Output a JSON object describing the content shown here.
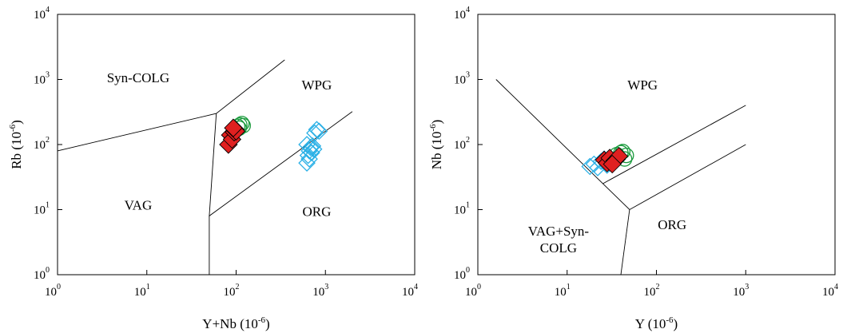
{
  "chart_data": [
    {
      "type": "scatter",
      "title": "",
      "xlabel": "Y+Nb (10-6)",
      "ylabel": "Rb (10-6)",
      "x_scale": "log",
      "y_scale": "log",
      "xlim": [
        1,
        10000
      ],
      "ylim": [
        1,
        10000
      ],
      "x_ticks": [
        {
          "base": "10",
          "exp": "0"
        },
        {
          "base": "10",
          "exp": "1"
        },
        {
          "base": "10",
          "exp": "2"
        },
        {
          "base": "10",
          "exp": "3"
        },
        {
          "base": "10",
          "exp": "4"
        }
      ],
      "y_ticks": [
        {
          "base": "10",
          "exp": "0"
        },
        {
          "base": "10",
          "exp": "1"
        },
        {
          "base": "10",
          "exp": "2"
        },
        {
          "base": "10",
          "exp": "3"
        },
        {
          "base": "10",
          "exp": "4"
        }
      ],
      "field_labels": [
        {
          "text": "Syn-COLG",
          "x": 8,
          "y": 900
        },
        {
          "text": "WPG",
          "x": 800,
          "y": 700
        },
        {
          "text": "VAG",
          "x": 8,
          "y": 10
        },
        {
          "text": "ORG",
          "x": 800,
          "y": 8
        }
      ],
      "boundaries": [
        [
          [
            1,
            80
          ],
          [
            60,
            300
          ],
          [
            350,
            2000
          ]
        ],
        [
          [
            60,
            300
          ],
          [
            50,
            8
          ],
          [
            2000,
            320
          ]
        ],
        [
          [
            50,
            8
          ],
          [
            50,
            1
          ]
        ]
      ],
      "series": [
        {
          "marker": "filled-diamond",
          "color": "#e02020",
          "points": [
            [
              82,
              100
            ],
            [
              86,
              140
            ],
            [
              90,
              120
            ],
            [
              95,
              155
            ],
            [
              98,
              170
            ],
            [
              100,
              160
            ],
            [
              93,
              180
            ]
          ]
        },
        {
          "marker": "open-circle",
          "color": "#1a9a3c",
          "points": [
            [
              96,
              165
            ],
            [
              104,
              190
            ],
            [
              110,
              200
            ],
            [
              116,
              210
            ],
            [
              120,
              195
            ],
            [
              108,
              178
            ]
          ]
        },
        {
          "marker": "open-square",
          "color": "#2ab0e6",
          "points": [
            [
              620,
              52
            ],
            [
              640,
              68
            ],
            [
              660,
              80
            ],
            [
              680,
              90
            ],
            [
              720,
              95
            ],
            [
              700,
              75
            ],
            [
              660,
              60
            ],
            [
              620,
              100
            ],
            [
              800,
              170
            ],
            [
              850,
              160
            ],
            [
              760,
              150
            ],
            [
              740,
              85
            ]
          ]
        }
      ]
    },
    {
      "type": "scatter",
      "title": "",
      "xlabel": "Y (10-6)",
      "ylabel": "Nb (10-6)",
      "x_scale": "log",
      "y_scale": "log",
      "xlim": [
        1,
        10000
      ],
      "ylim": [
        1,
        10000
      ],
      "x_ticks": [
        {
          "base": "10",
          "exp": "0"
        },
        {
          "base": "10",
          "exp": "1"
        },
        {
          "base": "10",
          "exp": "2"
        },
        {
          "base": "10",
          "exp": "3"
        },
        {
          "base": "10",
          "exp": "4"
        }
      ],
      "y_ticks": [
        {
          "base": "10",
          "exp": "0"
        },
        {
          "base": "10",
          "exp": "1"
        },
        {
          "base": "10",
          "exp": "2"
        },
        {
          "base": "10",
          "exp": "3"
        },
        {
          "base": "10",
          "exp": "4"
        }
      ],
      "field_labels": [
        {
          "text": "WPG",
          "x": 70,
          "y": 700
        },
        {
          "text": "VAG+Syn-",
          "x": 8,
          "y": 4
        },
        {
          "text": "COLG",
          "x": 8,
          "y": 2.2
        },
        {
          "text": "ORG",
          "x": 150,
          "y": 5
        }
      ],
      "boundaries": [
        [
          [
            1.6,
            1000
          ],
          [
            50,
            10
          ],
          [
            1000,
            100
          ]
        ],
        [
          [
            25,
            25
          ],
          [
            1000,
            400
          ]
        ],
        [
          [
            50,
            10
          ],
          [
            40,
            1
          ]
        ]
      ],
      "series": [
        {
          "marker": "filled-diamond",
          "color": "#e02020",
          "points": [
            [
              26,
              58
            ],
            [
              28,
              52
            ],
            [
              30,
              62
            ],
            [
              34,
              56
            ],
            [
              36,
              60
            ],
            [
              38,
              66
            ],
            [
              32,
              50
            ]
          ]
        },
        {
          "marker": "open-circle",
          "color": "#1a9a3c",
          "points": [
            [
              36,
              70
            ],
            [
              40,
              75
            ],
            [
              44,
              60
            ],
            [
              46,
              68
            ],
            [
              42,
              78
            ]
          ]
        },
        {
          "marker": "open-square",
          "color": "#2ab0e6",
          "points": [
            [
              18,
              46
            ],
            [
              20,
              50
            ],
            [
              22,
              44
            ],
            [
              24,
              55
            ],
            [
              26,
              60
            ],
            [
              28,
              48
            ],
            [
              30,
              52
            ]
          ]
        }
      ]
    }
  ]
}
